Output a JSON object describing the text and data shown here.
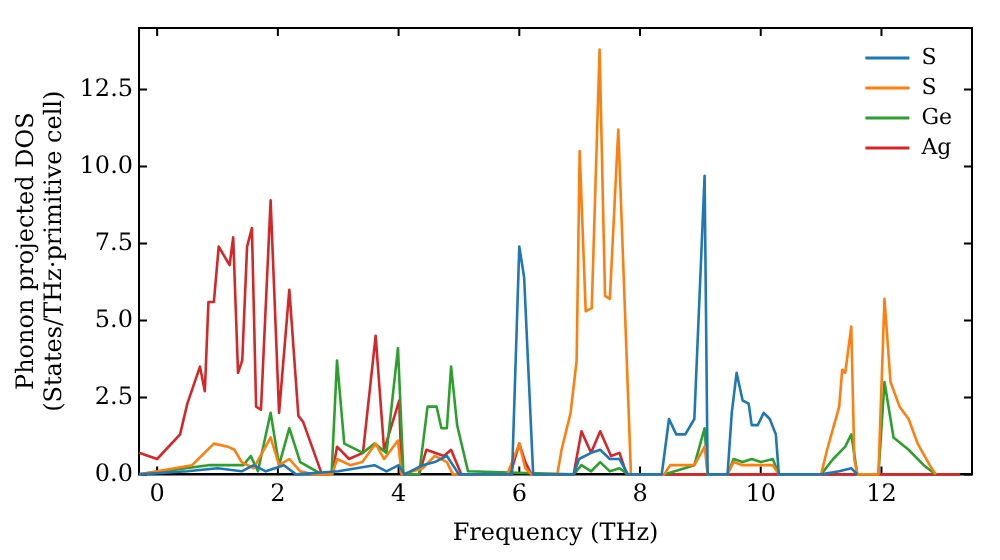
{
  "chart_data": {
    "type": "line",
    "xlabel": "Frequency (THz)",
    "ylabel": "Phonon projected DOS\n(States/THz·primitive cell)",
    "xlim": [
      -0.3,
      13.5
    ],
    "ylim": [
      0,
      14.5
    ],
    "xticks": [
      0,
      2,
      4,
      6,
      8,
      10,
      12
    ],
    "yticks": [
      {
        "value": 0,
        "label": "0.0"
      },
      {
        "value": 2.5,
        "label": "2.5"
      },
      {
        "value": 5,
        "label": "5.0"
      },
      {
        "value": 7.5,
        "label": "7.5"
      },
      {
        "value": 10,
        "label": "10.0"
      },
      {
        "value": 12.5,
        "label": "12.5"
      }
    ],
    "grid": false,
    "legend": "top right",
    "marker": "none",
    "line_style": "solid",
    "series": [
      {
        "name": "S",
        "color": "#1f77b4",
        "x": [
          -0.3,
          0.5,
          1.0,
          1.4,
          1.6,
          1.8,
          2.1,
          2.3,
          3.0,
          3.6,
          3.8,
          4.0,
          4.1,
          4.4,
          4.6,
          4.8,
          5.0,
          5.88,
          6.0,
          6.08,
          6.23,
          6.9,
          6.99,
          7.19,
          7.34,
          7.5,
          7.66,
          7.8,
          8.36,
          8.48,
          8.6,
          8.75,
          8.9,
          9.07,
          9.12,
          9.45,
          9.52,
          9.6,
          9.7,
          9.8,
          9.85,
          9.95,
          10.05,
          10.15,
          10.25,
          10.3,
          11.0,
          11.3,
          11.5,
          11.6
        ],
        "values": [
          0,
          0.1,
          0.2,
          0.1,
          0.3,
          0.1,
          0.3,
          0,
          0.1,
          0.3,
          0.1,
          0.3,
          0,
          0.3,
          0.4,
          0.6,
          0,
          0,
          7.4,
          6.4,
          0,
          0,
          0.5,
          0.7,
          0.8,
          0.5,
          0.5,
          0,
          0,
          1.8,
          1.3,
          1.3,
          1.8,
          9.7,
          0,
          0,
          2.0,
          3.3,
          2.4,
          2.3,
          1.6,
          1.6,
          2.0,
          1.8,
          1.3,
          0,
          0,
          0.1,
          0.2,
          0
        ]
      },
      {
        "name": "S",
        "color": "#ff7f0e",
        "x": [
          -0.3,
          0,
          0.58,
          0.94,
          1.17,
          1.28,
          1.4,
          1.6,
          1.88,
          2.02,
          2.19,
          2.37,
          2.6,
          2.9,
          2.98,
          3.2,
          3.4,
          3.62,
          3.76,
          3.99,
          4.05,
          4.4,
          4.6,
          4.8,
          4.9,
          5.8,
          6.0,
          6.1,
          6.2,
          6.63,
          6.7,
          6.85,
          6.95,
          7.0,
          7.1,
          7.2,
          7.33,
          7.42,
          7.5,
          7.64,
          7.85,
          8.4,
          8.5,
          8.9,
          9.07,
          9.12,
          9.45,
          9.55,
          9.7,
          10.2,
          10.3,
          11.0,
          11.1,
          11.2,
          11.3,
          11.35,
          11.4,
          11.5,
          11.55,
          11.6,
          11.95,
          12.05,
          12.15,
          12.3,
          12.45,
          12.6,
          12.8,
          12.9
        ],
        "values": [
          0,
          0.1,
          0.3,
          1.0,
          0.9,
          0.8,
          0.4,
          0.2,
          1.2,
          0.3,
          0.5,
          0.1,
          0,
          0,
          0.5,
          0.3,
          0.4,
          1.0,
          0.5,
          1.1,
          0,
          0.2,
          0.6,
          0.4,
          0,
          0,
          1.0,
          0.2,
          0,
          0,
          0.8,
          2.0,
          3.7,
          10.5,
          5.3,
          5.4,
          13.8,
          5.8,
          5.7,
          11.2,
          0,
          0,
          0.3,
          0.3,
          0.9,
          0,
          0,
          0.4,
          0.3,
          0.3,
          0,
          0,
          0.8,
          1.5,
          2.2,
          3.4,
          3.3,
          4.8,
          0.5,
          0,
          0,
          5.7,
          3.0,
          2.2,
          1.8,
          1.0,
          0.3,
          0
        ]
      },
      {
        "name": "Ge",
        "color": "#2ca02c",
        "x": [
          -0.3,
          0.85,
          1.43,
          1.55,
          1.67,
          1.88,
          2.02,
          2.19,
          2.37,
          2.73,
          2.89,
          2.98,
          3.1,
          3.41,
          3.6,
          3.8,
          3.99,
          4.08,
          4.34,
          4.48,
          4.63,
          4.71,
          4.8,
          4.87,
          4.97,
          5.15,
          6.9,
          7.03,
          7.19,
          7.34,
          7.5,
          7.66,
          7.8,
          8.4,
          8.9,
          9.07,
          9.12,
          9.45,
          9.55,
          9.7,
          9.85,
          10.0,
          10.2,
          10.3,
          11.0,
          11.2,
          11.4,
          11.5,
          11.6,
          11.95,
          12.05,
          12.2,
          12.45,
          12.7,
          12.9
        ],
        "values": [
          0,
          0.3,
          0.3,
          0.6,
          0.1,
          2.0,
          0.3,
          1.5,
          0.4,
          0,
          0,
          3.7,
          1.0,
          0.7,
          1.0,
          0.7,
          4.1,
          0,
          0,
          2.2,
          2.2,
          1.5,
          1.5,
          3.5,
          1.6,
          0.1,
          0,
          0.3,
          0.1,
          0.4,
          0.1,
          0.2,
          0,
          0,
          0.3,
          1.5,
          0,
          0,
          0.5,
          0.4,
          0.5,
          0.4,
          0.5,
          0,
          0,
          0.5,
          0.9,
          1.3,
          0,
          0,
          3.0,
          1.2,
          0.8,
          0.3,
          0
        ]
      },
      {
        "name": "Ag",
        "color": "#d62728",
        "x": [
          -0.3,
          0,
          0.38,
          0.5,
          0.71,
          0.79,
          0.85,
          0.94,
          1.02,
          1.2,
          1.26,
          1.34,
          1.41,
          1.49,
          1.57,
          1.64,
          1.72,
          1.88,
          2.02,
          2.19,
          2.34,
          2.42,
          2.73,
          2.9,
          2.98,
          3.18,
          3.41,
          3.62,
          3.76,
          4.01,
          4.05,
          4.34,
          4.46,
          4.75,
          4.87,
          5.04,
          5.85,
          6.0,
          6.1,
          6.2,
          6.9,
          7.03,
          7.19,
          7.34,
          7.52,
          7.66,
          7.78,
          13.3
        ],
        "values": [
          0.7,
          0.5,
          1.3,
          2.3,
          3.5,
          2.7,
          5.6,
          5.6,
          7.4,
          6.8,
          7.7,
          3.3,
          3.7,
          7.4,
          8.0,
          2.2,
          2.1,
          8.9,
          2.0,
          6.0,
          1.9,
          1.7,
          0,
          0,
          0.9,
          0.5,
          0.7,
          4.5,
          0.8,
          2.4,
          0,
          0,
          0.8,
          0.6,
          0.8,
          0,
          0,
          1.0,
          0.4,
          0,
          0,
          1.4,
          0.7,
          1.4,
          0.6,
          0.7,
          0,
          0
        ]
      }
    ]
  }
}
